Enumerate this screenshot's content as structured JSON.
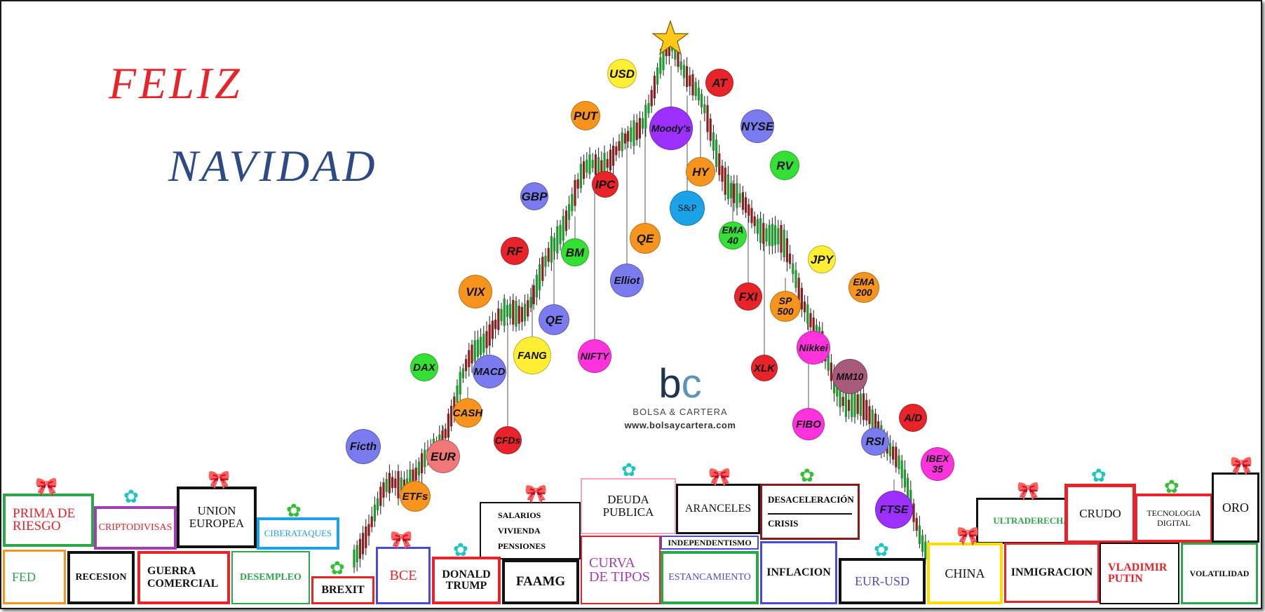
{
  "greeting": {
    "line1": "FELIZ",
    "line2": "NAVIDAD"
  },
  "logo": {
    "mark_b": "b",
    "mark_c": "c",
    "brand": "BOLSA & CARTERA",
    "url": "www.bolsaycartera.com"
  },
  "star_icon": "star-icon",
  "balls": [
    {
      "label": "USD",
      "color": "#ffee33"
    },
    {
      "label": "AT",
      "color": "#e8232a"
    },
    {
      "label": "PUT",
      "color": "#f7941d"
    },
    {
      "label": "Moody's",
      "color": "#9b30ff"
    },
    {
      "label": "NYSE",
      "color": "#7b7bf0"
    },
    {
      "label": "HY",
      "color": "#f7941d"
    },
    {
      "label": "RV",
      "color": "#33e033"
    },
    {
      "label": "IPC",
      "color": "#e8232a"
    },
    {
      "label": "GBP",
      "color": "#7b7bf0"
    },
    {
      "label": "S&P",
      "color": "#1aa3e8"
    },
    {
      "label": "EMA 40",
      "color": "#33e033"
    },
    {
      "label": "QE",
      "color": "#f7941d"
    },
    {
      "label": "RF",
      "color": "#e8232a"
    },
    {
      "label": "BM",
      "color": "#33e033"
    },
    {
      "label": "JPY",
      "color": "#ffee33"
    },
    {
      "label": "Elliot",
      "color": "#7b7bf0"
    },
    {
      "label": "VIX",
      "color": "#f7941d"
    },
    {
      "label": "EMA 200",
      "color": "#f7941d"
    },
    {
      "label": "FXI",
      "color": "#e8232a"
    },
    {
      "label": "SP 500",
      "color": "#f7941d"
    },
    {
      "label": "QE",
      "color": "#7b7bf0"
    },
    {
      "label": "FANG",
      "color": "#ffee33"
    },
    {
      "label": "Nikkei",
      "color": "#ff33dd"
    },
    {
      "label": "NIFTY",
      "color": "#ff33dd"
    },
    {
      "label": "DAX",
      "color": "#33e033"
    },
    {
      "label": "MACD",
      "color": "#7b7bf0"
    },
    {
      "label": "XLK",
      "color": "#e8232a"
    },
    {
      "label": "MM10",
      "color": "#a85a7a"
    },
    {
      "label": "CASH",
      "color": "#f7941d"
    },
    {
      "label": "A/D",
      "color": "#e8232a"
    },
    {
      "label": "FIBO",
      "color": "#ff33dd"
    },
    {
      "label": "Ficth",
      "color": "#7b7bf0"
    },
    {
      "label": "CFDs",
      "color": "#e8232a"
    },
    {
      "label": "RSI",
      "color": "#7b7bf0"
    },
    {
      "label": "EUR",
      "color": "#f07878"
    },
    {
      "label": "IBEX 35",
      "color": "#ff33dd"
    },
    {
      "label": "ETFs",
      "color": "#f7941d"
    },
    {
      "label": "FTSE",
      "color": "#9b30ff"
    }
  ],
  "gifts": [
    {
      "label": "PRIMA DE RIESGO",
      "border": "#2aa84a",
      "color": "#e8232a"
    },
    {
      "label": "CRIPTODIVISAS",
      "border": "#a040b0",
      "color": "#e8232a"
    },
    {
      "label": "UNION EUROPEA",
      "border": "#111111",
      "color": "#111111"
    },
    {
      "label": "CIBERATAQUES",
      "border": "#1aa3e8",
      "color": "#1aa3e8"
    },
    {
      "label": "FED",
      "border": "#f7941d",
      "color": "#2aa84a"
    },
    {
      "label": "RECESION",
      "border": "#111111",
      "color": "#111111"
    },
    {
      "label": "GUERRA COMERCIAL",
      "border": "#e8232a",
      "color": "#111111"
    },
    {
      "label": "DESEMPLEO",
      "border": "#2aa84a",
      "color": "#2aa84a"
    },
    {
      "label": "BREXIT",
      "border": "#e8232a",
      "color": "#111111"
    },
    {
      "label": "BCE",
      "border": "#4a4ad8",
      "color": "#e8232a"
    },
    {
      "label": "DONALD TRUMP",
      "border": "#e8232a",
      "color": "#111111"
    },
    {
      "label": "SALARIOS",
      "border": "#111111",
      "color": "#111111"
    },
    {
      "label": "VIVIENDA",
      "border": "#111111",
      "color": "#111111"
    },
    {
      "label": "PENSIONES",
      "border": "#111111",
      "color": "#111111"
    },
    {
      "label": "FAAMG",
      "border": "#111111",
      "color": "#111111"
    },
    {
      "label": "DEUDA PUBLICA",
      "border": "#f3a3c3",
      "color": "#111111"
    },
    {
      "label": "CURVA DE TIPOS",
      "border": "#e8232a",
      "color": "#a040b0"
    },
    {
      "label": "ARANCELES",
      "border": "#111111",
      "color": "#111111"
    },
    {
      "label": "INDEPENDENTISMO",
      "border": "#4a4ad8",
      "color": "#111111"
    },
    {
      "label": "ESTANCAMIENTO",
      "border": "#2aa84a",
      "color": "#4a4ad8"
    },
    {
      "label": "DESACELERACIÓN",
      "border": "#8a1a1a",
      "color": "#111111"
    },
    {
      "label": "CRISIS",
      "border": "#8a1a1a",
      "color": "#111111"
    },
    {
      "label": "INFLACION",
      "border": "#4a4ad8",
      "color": "#111111"
    },
    {
      "label": "EUR-USD",
      "border": "#111111",
      "color": "#4a4ad8"
    },
    {
      "label": "CHINA",
      "border": "#ffdd00",
      "color": "#111111"
    },
    {
      "label": "ULTRADERECHA",
      "border": "#111111",
      "color": "#2aa84a"
    },
    {
      "label": "INMIGRACION",
      "border": "#e8232a",
      "color": "#111111"
    },
    {
      "label": "CRUDO",
      "border": "#e8232a",
      "color": "#111111"
    },
    {
      "label": "TECNOLOGIA DIGITAL",
      "border": "#e8232a",
      "color": "#111111"
    },
    {
      "label": "VLADIMIR PUTIN",
      "border": "#111111",
      "color": "#e8232a"
    },
    {
      "label": "ORO",
      "border": "#111111",
      "color": "#111111"
    },
    {
      "label": "VOLATILIDAD",
      "border": "#2aa84a",
      "color": "#111111"
    }
  ]
}
